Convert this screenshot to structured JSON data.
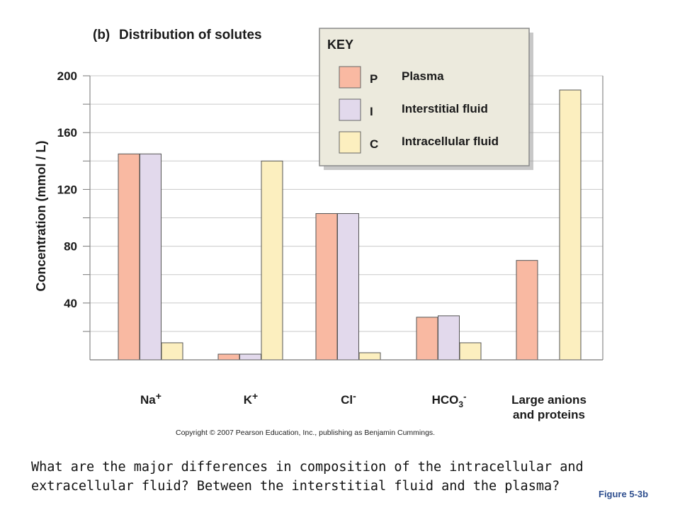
{
  "title": {
    "panel": "(b)",
    "text": "Distribution of solutes"
  },
  "colors": {
    "plasma": "#f9b9a2",
    "interstitial": "#e2d9ec",
    "intracellular": "#fcefbf",
    "key_bg": "#eceadd"
  },
  "key": {
    "title": "KEY",
    "items": [
      {
        "letter": "P",
        "label": "Plasma"
      },
      {
        "letter": "I",
        "label": "Interstitial fluid"
      },
      {
        "letter": "C",
        "label": "Intracellular fluid"
      }
    ]
  },
  "chart_data": {
    "type": "bar",
    "ylabel": "Concentration (mmol / L)",
    "xlabel": "",
    "ylim": [
      0,
      200
    ],
    "yticks": [
      40,
      80,
      120,
      160,
      200
    ],
    "grid": true,
    "legend": "top-right",
    "categories": [
      {
        "symbol": "Na",
        "sup": "+",
        "sub": "",
        "sub_sup": "",
        "lines": []
      },
      {
        "symbol": "K",
        "sup": "+",
        "sub": "",
        "sub_sup": "",
        "lines": []
      },
      {
        "symbol": "Cl",
        "sup": "-",
        "sub": "",
        "sub_sup": "",
        "lines": []
      },
      {
        "symbol": "HCO",
        "sup": "",
        "sub": "3",
        "sub_sup": "-",
        "lines": []
      },
      {
        "symbol": "",
        "sup": "",
        "sub": "",
        "sub_sup": "",
        "lines": [
          "Large anions",
          "and proteins"
        ]
      }
    ],
    "series": [
      {
        "key": "P",
        "name": "Plasma",
        "values": [
          145,
          4,
          103,
          30,
          70
        ]
      },
      {
        "key": "I",
        "name": "Interstitial fluid",
        "values": [
          145,
          4,
          103,
          31,
          null
        ]
      },
      {
        "key": "C",
        "name": "Intracellular fluid",
        "values": [
          12,
          140,
          5,
          12,
          190
        ]
      }
    ]
  },
  "copyright": "Copyright © 2007 Pearson Education, Inc., publishing as Benjamin Cummings.",
  "question": "What are the major differences in composition of the intracellular and extracellular fluid?   Between the interstitial fluid and the plasma?",
  "figure_label": "Figure 5-3b"
}
